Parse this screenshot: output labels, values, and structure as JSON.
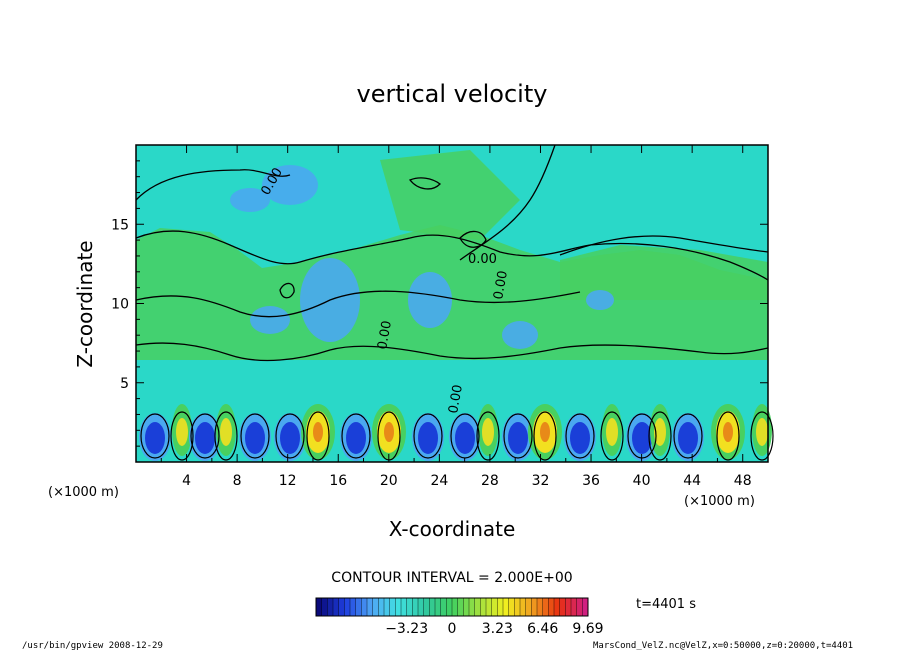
{
  "footer": {
    "left": "/usr/bin/gpview   2008-12-29",
    "right": "MarsCond_VelZ.nc@VelZ,x=0:50000,z=0:20000,t=4401"
  },
  "chart_data": {
    "type": "heatmap",
    "title": "vertical velocity",
    "xlabel": "X-coordinate",
    "ylabel": "Z-coordinate",
    "x_unit_label": "(×1000 m)",
    "y_unit_label": "(×1000 m)",
    "xlim": [
      0,
      50
    ],
    "ylim": [
      0,
      20
    ],
    "x_ticks": [
      4,
      8,
      12,
      16,
      20,
      24,
      28,
      32,
      36,
      40,
      44,
      48
    ],
    "x_tick_labels": [
      "4",
      "8",
      "12",
      "16",
      "20",
      "24",
      "28",
      "32",
      "36",
      "40",
      "44",
      "48"
    ],
    "y_ticks": [
      5,
      10,
      15
    ],
    "y_tick_labels": [
      "5",
      "10",
      "15"
    ],
    "contour_interval_text": "CONTOUR INTERVAL = 2.000E+00",
    "time_text": "t=4401 s",
    "contour_labels": [
      "0.00",
      "0.00",
      "0.00",
      "0.00",
      "0.00"
    ],
    "colorbar": {
      "range": [
        -9.69,
        9.69
      ],
      "ticks": [
        -3.23,
        0,
        3.23,
        6.46,
        9.69
      ],
      "tick_labels": [
        "−3.23",
        "0",
        "3.23",
        "6.46",
        "9.69"
      ],
      "colors": [
        "#0a0a7a",
        "#1f3fe0",
        "#4fa8f5",
        "#40e0e0",
        "#30c8a0",
        "#40d060",
        "#a0e040",
        "#f0f020",
        "#f0a020",
        "#e83010",
        "#d02080"
      ]
    },
    "field_colors": {
      "background": "#2ad8c8",
      "updraft": "#48d060",
      "weak_down": "#4aa8f0",
      "strong_down": "#1a3fd8",
      "strong_up": "#f2e020",
      "core_up": "#e88a18"
    }
  }
}
